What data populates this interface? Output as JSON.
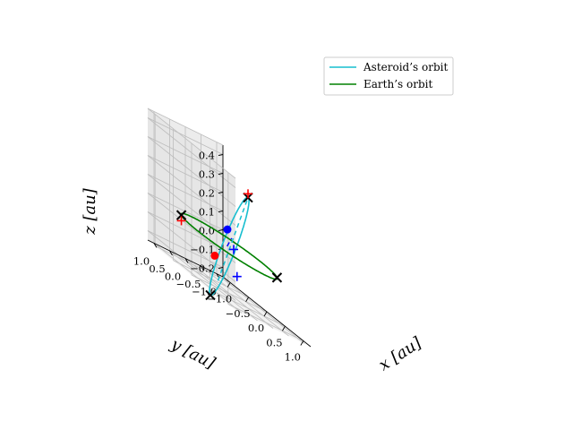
{
  "chart_data": {
    "type": "line",
    "projection": "3d",
    "xlabel": "x [au]",
    "ylabel": "y [au]",
    "zlabel": "z [au]",
    "xlim": [
      -1.2,
      1.2
    ],
    "ylim": [
      -1.2,
      1.2
    ],
    "zlim": [
      -0.25,
      0.45
    ],
    "xticks": [
      -1.0,
      -0.5,
      0.0,
      0.5,
      1.0
    ],
    "yticks": [
      -1.0,
      -0.5,
      0.0,
      0.5,
      1.0
    ],
    "zticks": [
      -0.2,
      -0.1,
      0.0,
      0.1,
      0.2,
      0.3,
      0.4
    ],
    "xtick_labels": [
      "−1.0",
      "−0.5",
      "0.0",
      "0.5",
      "1.0"
    ],
    "ytick_labels": [
      "−1.0",
      "−0.5",
      "0.0",
      "0.5",
      "1.0"
    ],
    "ztick_labels": [
      "−0.2",
      "−0.1",
      "0.0",
      "0.1",
      "0.2",
      "0.3",
      "0.4"
    ],
    "grid": true,
    "legend_position": "top-right",
    "series": [
      {
        "name": "Asteroid’s orbit",
        "color": "#17becf",
        "kind": "ellipse",
        "center": [
          0.0,
          0.0,
          0.0
        ],
        "semi_major_vector": [
          1.2,
          0.8,
          0.38
        ],
        "semi_minor_vector": [
          -0.08,
          0.1,
          0.0
        ]
      },
      {
        "name": "Earth’s orbit",
        "color": "#008000",
        "kind": "circle",
        "center": [
          0.0,
          0.0,
          0.0
        ],
        "radius": 1.0
      }
    ],
    "dashed_lines": [
      {
        "color": "#17becf",
        "from": [
          -0.82,
          -0.6,
          -0.26
        ],
        "to": [
          1.2,
          0.8,
          0.38
        ]
      },
      {
        "color": "#0000ff",
        "from": [
          0.08,
          0.16,
          0.0
        ],
        "to": [
          0.17,
          0.12,
          0.06
        ]
      }
    ],
    "markers": [
      {
        "shape": "x",
        "color": "#000000",
        "point": [
          1.2,
          0.8,
          0.38
        ]
      },
      {
        "shape": "x",
        "color": "#000000",
        "point": [
          -1.2,
          -0.8,
          -0.38
        ]
      },
      {
        "shape": "x",
        "color": "#000000",
        "point": [
          0.7,
          -0.71,
          0.0
        ]
      },
      {
        "shape": "x",
        "color": "#000000",
        "point": [
          -0.7,
          0.71,
          0.0
        ]
      },
      {
        "shape": "plus",
        "color": "#ff0000",
        "point": [
          1.2,
          0.8,
          0.4
        ]
      },
      {
        "shape": "plus",
        "color": "#ff0000",
        "point": [
          -0.7,
          0.71,
          -0.03
        ]
      },
      {
        "shape": "plus",
        "color": "#0000ff",
        "point": [
          0.08,
          -0.05,
          0.0
        ]
      },
      {
        "shape": "plus",
        "color": "#0000ff",
        "point": [
          0.0,
          -0.25,
          -0.14
        ]
      },
      {
        "shape": "dot",
        "color": "#0000ff",
        "point": [
          0.25,
          0.35,
          0.1
        ]
      },
      {
        "shape": "dot",
        "color": "#ff0000",
        "point": [
          -0.55,
          -0.18,
          -0.12
        ]
      }
    ]
  }
}
